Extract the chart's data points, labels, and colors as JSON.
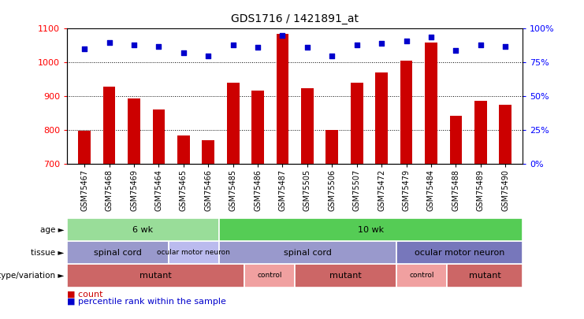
{
  "title": "GDS1716 / 1421891_at",
  "samples": [
    "GSM75467",
    "GSM75468",
    "GSM75469",
    "GSM75464",
    "GSM75465",
    "GSM75466",
    "GSM75485",
    "GSM75486",
    "GSM75487",
    "GSM75505",
    "GSM75506",
    "GSM75507",
    "GSM75472",
    "GSM75479",
    "GSM75484",
    "GSM75488",
    "GSM75489",
    "GSM75490"
  ],
  "counts": [
    798,
    929,
    894,
    862,
    785,
    770,
    940,
    916,
    1085,
    924,
    800,
    940,
    970,
    1005,
    1060,
    843,
    886,
    875
  ],
  "percentile": [
    85,
    90,
    88,
    87,
    82,
    80,
    88,
    86,
    95,
    86,
    80,
    88,
    89,
    91,
    94,
    84,
    88,
    87
  ],
  "ylim_left": [
    700,
    1100
  ],
  "ylim_right": [
    0,
    100
  ],
  "yticks_left": [
    700,
    800,
    900,
    1000,
    1100
  ],
  "yticks_right": [
    0,
    25,
    50,
    75,
    100
  ],
  "bar_color": "#cc0000",
  "dot_color": "#0000cc",
  "age_row": {
    "label": "age",
    "segments": [
      {
        "text": "6 wk",
        "start": 0,
        "end": 6,
        "color": "#99dd99"
      },
      {
        "text": "10 wk",
        "start": 6,
        "end": 18,
        "color": "#55cc55"
      }
    ]
  },
  "tissue_row": {
    "label": "tissue",
    "segments": [
      {
        "text": "spinal cord",
        "start": 0,
        "end": 4,
        "color": "#9999cc"
      },
      {
        "text": "ocular motor neuron",
        "start": 4,
        "end": 6,
        "color": "#bbbbee"
      },
      {
        "text": "spinal cord",
        "start": 6,
        "end": 13,
        "color": "#9999cc"
      },
      {
        "text": "ocular motor neuron",
        "start": 13,
        "end": 18,
        "color": "#7777bb"
      }
    ]
  },
  "genotype_row": {
    "label": "genotype/variation",
    "segments": [
      {
        "text": "mutant",
        "start": 0,
        "end": 7,
        "color": "#cc6666"
      },
      {
        "text": "control",
        "start": 7,
        "end": 9,
        "color": "#f0a0a0"
      },
      {
        "text": "mutant",
        "start": 9,
        "end": 13,
        "color": "#cc6666"
      },
      {
        "text": "control",
        "start": 13,
        "end": 15,
        "color": "#f0a0a0"
      },
      {
        "text": "mutant",
        "start": 15,
        "end": 18,
        "color": "#cc6666"
      }
    ]
  },
  "legend": [
    "count",
    "percentile rank within the sample"
  ],
  "background_color": "#ffffff",
  "fig_width": 7.41,
  "fig_height": 4.05,
  "dpi": 100
}
